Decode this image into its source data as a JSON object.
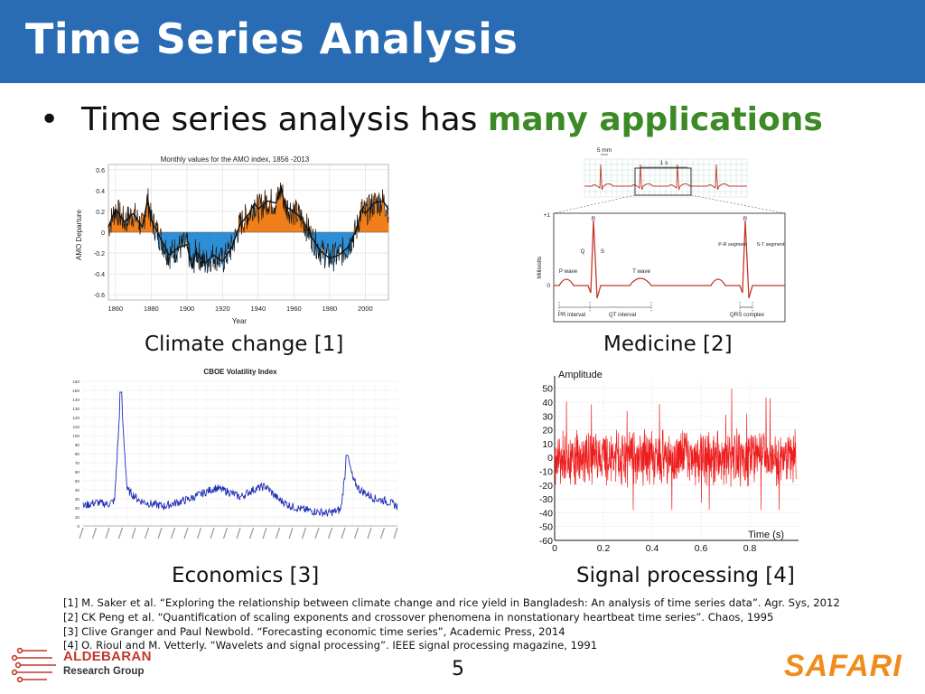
{
  "slide": {
    "title": "Time Series Analysis",
    "bullet_marker": "•",
    "bullet_prefix": "Time series analysis has ",
    "bullet_highlight": "many applications",
    "highlight_color": "#3c8a26",
    "title_bar_color": "#2a6cb3",
    "captions": {
      "climate": "Climate change [1]",
      "medicine": "Medicine [2]",
      "economics": "Economics [3]",
      "signal": "Signal processing [4]"
    },
    "references": [
      "[1] M. Saker et al. “Exploring the relationship between climate change and rice yield in Bangladesh: An analysis of time series data”. Agr. Sys, 2012",
      "[2] CK Peng et al. “Quantification of scaling exponents and crossover phenomena in nonstationary heartbeat time series”. Chaos, 1995",
      "[3] Clive Granger and Paul Newbold. “Forecasting economic time series”, Academic Press, 2014",
      "[4] O. Rioul and M. Vetterly. “Wavelets and signal processing”. IEEE signal processing magazine, 1991"
    ],
    "page_number": "5",
    "logo_left": {
      "name": "ALDEBARAN",
      "sub": "Research Group",
      "icon": "circuit-icon"
    },
    "logo_right": {
      "name": "SAFARI",
      "color": "#f08c1c"
    }
  },
  "chart_data": [
    {
      "type": "area",
      "id": "amo",
      "title": "Monthly values for the AMO index, 1856 -2013",
      "xlabel": "Year",
      "ylabel": "AMO Departure",
      "x_ticks": [
        "1860",
        "1880",
        "1900",
        "1920",
        "1940",
        "1960",
        "1980",
        "2000"
      ],
      "y_ticks": [
        "0.6",
        "0.4",
        "0.2",
        "0",
        "-0.2",
        "-0.4",
        "-0.6"
      ],
      "xlim": [
        1856,
        2013
      ],
      "ylim": [
        -0.65,
        0.65
      ],
      "grid": true,
      "colors": {
        "positive": "#f07f1b",
        "negative": "#2e8fd6",
        "line": "#111111"
      },
      "series": [
        {
          "x": [
            1856,
            1860,
            1865,
            1870,
            1875,
            1878,
            1880,
            1885,
            1890,
            1895,
            1900,
            1903,
            1905,
            1910,
            1915,
            1920,
            1925,
            1930,
            1935,
            1938,
            1940,
            1945,
            1950,
            1953,
            1955,
            1960,
            1965,
            1970,
            1975,
            1980,
            1985,
            1990,
            1995,
            1998,
            2000,
            2005,
            2010,
            2013
          ],
          "values": [
            0.05,
            0.22,
            0.1,
            0.18,
            0.05,
            0.32,
            0.12,
            -0.05,
            -0.22,
            -0.15,
            -0.12,
            -0.35,
            -0.18,
            -0.3,
            -0.22,
            -0.28,
            -0.15,
            0.08,
            0.18,
            0.28,
            0.22,
            0.3,
            0.28,
            0.42,
            0.25,
            0.2,
            0.12,
            -0.05,
            -0.18,
            -0.25,
            -0.22,
            -0.15,
            0.02,
            0.22,
            0.18,
            0.28,
            0.3,
            0.22
          ]
        }
      ]
    },
    {
      "type": "line",
      "id": "ecg",
      "ylabel": "Millivolts",
      "y_ticks": [
        "+1",
        "0"
      ],
      "annotations": [
        "5 mm",
        "1 s",
        "R",
        "R",
        "Q",
        "S",
        "P wave",
        "T wave",
        "P-R segment",
        "S-T segment",
        "PR interval",
        "QT interval",
        "QRS complex"
      ],
      "colors": {
        "line": "#c0392b",
        "grid": "#b9d7d7"
      }
    },
    {
      "type": "line",
      "id": "vix",
      "title": "CBOE Volatility Index",
      "y_ticks": [
        "160",
        "150",
        "140",
        "130",
        "120",
        "110",
        "100",
        "90",
        "80",
        "70",
        "60",
        "50",
        "40",
        "30",
        "20",
        "10",
        "0"
      ],
      "ylim": [
        0,
        160
      ],
      "grid": true,
      "colors": {
        "line": "#1f2fb5"
      },
      "series": [
        {
          "x": [
            0,
            0.04,
            0.08,
            0.1,
            0.12,
            0.14,
            0.18,
            0.22,
            0.26,
            0.3,
            0.34,
            0.38,
            0.42,
            0.46,
            0.5,
            0.54,
            0.58,
            0.62,
            0.66,
            0.7,
            0.74,
            0.78,
            0.82,
            0.84,
            0.86,
            0.88,
            0.9,
            0.93,
            0.96,
            1.0
          ],
          "values": [
            22,
            26,
            24,
            28,
            148,
            40,
            28,
            24,
            22,
            26,
            30,
            36,
            42,
            38,
            32,
            40,
            44,
            30,
            22,
            18,
            16,
            14,
            18,
            78,
            50,
            40,
            36,
            30,
            28,
            22
          ]
        }
      ]
    },
    {
      "type": "line",
      "id": "signal",
      "xlabel": "Time (s)",
      "ylabel": "Amplitude",
      "x_ticks": [
        "0",
        "0.2",
        "0.4",
        "0.6",
        "0.8"
      ],
      "y_ticks": [
        "50",
        "40",
        "30",
        "20",
        "10",
        "0",
        "-10",
        "-20",
        "-30",
        "-40",
        "-50",
        "-60"
      ],
      "xlim": [
        0,
        1.0
      ],
      "ylim": [
        -60,
        55
      ],
      "grid": true,
      "colors": {
        "line": "#ee1c1c"
      }
    }
  ]
}
